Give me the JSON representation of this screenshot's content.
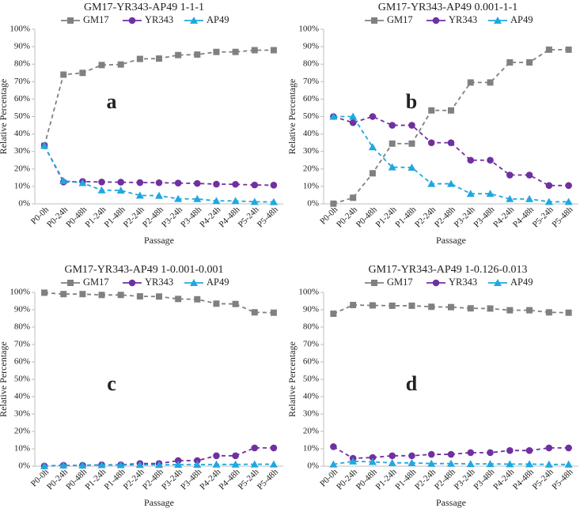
{
  "chart_data": [
    {
      "type": "line",
      "title": "GM17-YR343-AP49 1-1-1",
      "panel_label": "a",
      "xlabel": "Passage",
      "ylabel": "Relative Percentage",
      "ylim": [
        0,
        100
      ],
      "yticks": [
        "0%",
        "10%",
        "20%",
        "30%",
        "40%",
        "50%",
        "60%",
        "70%",
        "80%",
        "90%",
        "100%"
      ],
      "categories": [
        "P0-0h",
        "P0-24h",
        "P0-48h",
        "P1-24h",
        "P1-48h",
        "P2-24h",
        "P2-48h",
        "P3-24h",
        "P3-48h",
        "P4-24h",
        "P4-48h",
        "P5-24h",
        "P5-48h"
      ],
      "series": [
        {
          "name": "GM17",
          "values": [
            33.3,
            74,
            75,
            79.5,
            79.8,
            83,
            83.2,
            85.2,
            85.5,
            87,
            87,
            88,
            88
          ]
        },
        {
          "name": "YR343",
          "values": [
            33.3,
            12.5,
            12.8,
            12.5,
            12.4,
            12.2,
            12.1,
            11.9,
            11.7,
            11.3,
            11.2,
            10.8,
            10.7
          ]
        },
        {
          "name": "AP49",
          "values": [
            33.3,
            13.2,
            12.0,
            7.8,
            7.7,
            4.8,
            4.7,
            2.9,
            2.8,
            1.7,
            1.7,
            1.2,
            1.1
          ]
        }
      ]
    },
    {
      "type": "line",
      "title": "GM17-YR343-AP49 0.001-1-1",
      "panel_label": "b",
      "xlabel": "Passage",
      "ylabel": "Relative Percentage",
      "ylim": [
        0,
        100
      ],
      "yticks": [
        "0%",
        "10%",
        "20%",
        "30%",
        "40%",
        "50%",
        "60%",
        "70%",
        "80%",
        "90%",
        "100%"
      ],
      "categories": [
        "P0-0h",
        "P0-24h",
        "P0-48h",
        "P1-24h",
        "P1-48h",
        "P2-24h",
        "P2-48h",
        "P3-24h",
        "P3-48h",
        "P4-24h",
        "P4-48h",
        "P5-24h",
        "P5-48h"
      ],
      "series": [
        {
          "name": "GM17",
          "values": [
            0.1,
            3.5,
            17.5,
            34.5,
            34.5,
            53.5,
            53.5,
            69.5,
            69.5,
            81,
            81,
            88.3,
            88.3
          ]
        },
        {
          "name": "YR343",
          "values": [
            50,
            46.5,
            50,
            45,
            45,
            35,
            35,
            25,
            25,
            16.5,
            16.5,
            10.5,
            10.5
          ]
        },
        {
          "name": "AP49",
          "values": [
            50,
            50,
            32.5,
            21,
            20.8,
            11.5,
            11.5,
            5.8,
            5.8,
            2.8,
            2.8,
            1.2,
            1.2
          ]
        }
      ]
    },
    {
      "type": "line",
      "title": "GM17-YR343-AP49 1-0.001-0.001",
      "panel_label": "c",
      "xlabel": "Passage",
      "ylabel": "Relative Percentage",
      "ylim": [
        0,
        100
      ],
      "yticks": [
        "0%",
        "10%",
        "20%",
        "30%",
        "40%",
        "50%",
        "60%",
        "70%",
        "80%",
        "90%",
        "100%"
      ],
      "categories": [
        "P0-0h",
        "P0-24h",
        "P0-48h",
        "P1-24h",
        "P1-48h",
        "P2-24h",
        "P2-48h",
        "P3-24h",
        "P3-48h",
        "P4-24h",
        "P4-48h",
        "P5-24h",
        "P5-48h"
      ],
      "series": [
        {
          "name": "GM17",
          "values": [
            99.8,
            99,
            99,
            98.5,
            98.5,
            97.7,
            97.6,
            96.2,
            96,
            93.5,
            93.3,
            88.5,
            88.3
          ]
        },
        {
          "name": "YR343",
          "values": [
            0.1,
            0.5,
            0.5,
            0.8,
            0.8,
            1.5,
            1.5,
            3.2,
            3.2,
            6,
            6,
            10.5,
            10.5
          ]
        },
        {
          "name": "AP49",
          "values": [
            0.1,
            0.5,
            0.5,
            0.7,
            0.7,
            0.8,
            0.8,
            0.9,
            0.9,
            1.0,
            1.0,
            1.1,
            1.1
          ]
        }
      ]
    },
    {
      "type": "line",
      "title": "GM17-YR343-AP49 1-0.126-0.013",
      "panel_label": "d",
      "xlabel": "Passage",
      "ylabel": "Relative Percentage",
      "ylim": [
        0,
        100
      ],
      "yticks": [
        "0%",
        "10%",
        "20%",
        "30%",
        "40%",
        "50%",
        "60%",
        "70%",
        "80%",
        "90%",
        "100%"
      ],
      "categories": [
        "P0-0h",
        "P0-24h",
        "P0-48h",
        "P1-24h",
        "P1-48h",
        "P2-24h",
        "P2-48h",
        "P3-24h",
        "P3-48h",
        "P4-24h",
        "P4-48h",
        "P5-24h",
        "P5-48h"
      ],
      "series": [
        {
          "name": "GM17",
          "values": [
            87.7,
            92.7,
            92.5,
            92.3,
            92.3,
            91.7,
            91.5,
            90.8,
            90.7,
            89.7,
            89.7,
            88.5,
            88.3
          ]
        },
        {
          "name": "YR343",
          "values": [
            11.2,
            4.5,
            5.0,
            6.0,
            6.0,
            6.8,
            6.8,
            7.8,
            7.8,
            9.0,
            9.0,
            10.5,
            10.5
          ]
        },
        {
          "name": "AP49",
          "values": [
            1.1,
            2.8,
            2.5,
            1.9,
            1.9,
            1.5,
            1.5,
            1.3,
            1.3,
            1.2,
            1.2,
            1.0,
            1.0
          ]
        }
      ]
    }
  ],
  "colors": {
    "GM17": "#808080",
    "YR343": "#7030a0",
    "AP49": "#1fa8e0",
    "axis": "#bfbfbf",
    "text": "#222222"
  }
}
